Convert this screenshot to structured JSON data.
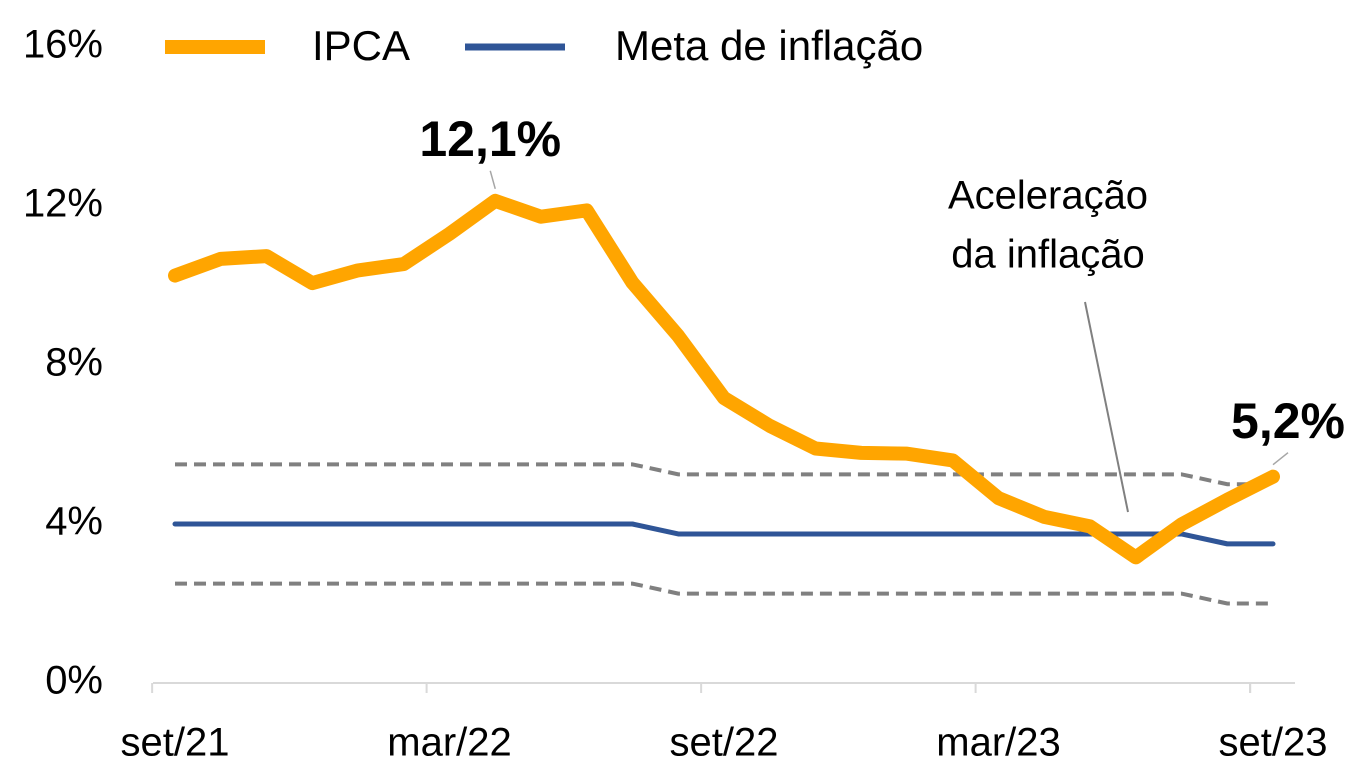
{
  "chart_data": {
    "type": "line",
    "categories": [
      "set/21",
      null,
      null,
      null,
      null,
      null,
      "mar/22",
      null,
      null,
      null,
      null,
      null,
      "set/22",
      null,
      null,
      null,
      null,
      null,
      "mar/23",
      null,
      null,
      null,
      null,
      null,
      "set/23"
    ],
    "series": [
      {
        "name": "IPCA",
        "color": "#FFA500",
        "values": [
          10.25,
          10.67,
          10.74,
          10.06,
          10.38,
          10.54,
          11.3,
          12.13,
          11.73,
          11.89,
          10.07,
          8.73,
          7.17,
          6.47,
          5.9,
          5.79,
          5.77,
          5.6,
          4.65,
          4.18,
          3.94,
          3.16,
          3.99,
          4.61,
          5.19
        ],
        "value_labels": [
          null,
          null,
          null,
          null,
          null,
          null,
          null,
          "12,1%",
          null,
          null,
          null,
          null,
          null,
          null,
          null,
          null,
          null,
          null,
          null,
          null,
          null,
          null,
          null,
          null,
          "5,2%"
        ]
      },
      {
        "name": "Meta de inflação",
        "color": "#2F5597",
        "values": [
          4,
          4,
          4,
          4,
          4,
          4,
          4,
          4,
          4,
          4,
          4,
          3.75,
          3.75,
          3.75,
          3.75,
          3.75,
          3.75,
          3.75,
          3.75,
          3.75,
          3.75,
          3.75,
          3.75,
          3.5,
          3.5
        ]
      }
    ],
    "bands": [
      {
        "color": "#808080",
        "values": [
          5.5,
          5.5,
          5.5,
          5.5,
          5.5,
          5.5,
          5.5,
          5.5,
          5.5,
          5.5,
          5.5,
          5.25,
          5.25,
          5.25,
          5.25,
          5.25,
          5.25,
          5.25,
          5.25,
          5.25,
          5.25,
          5.25,
          5.25,
          5,
          5
        ]
      },
      {
        "color": "#808080",
        "values": [
          2.5,
          2.5,
          2.5,
          2.5,
          2.5,
          2.5,
          2.5,
          2.5,
          2.5,
          2.5,
          2.5,
          2.25,
          2.25,
          2.25,
          2.25,
          2.25,
          2.25,
          2.25,
          2.25,
          2.25,
          2.25,
          2.25,
          2.25,
          2,
          2
        ]
      }
    ],
    "annotations": [
      {
        "lines": [
          "Aceleração",
          "da inflação"
        ]
      }
    ],
    "ylim": [
      0,
      16
    ],
    "yticks": [
      {
        "value": 0,
        "label": "0%"
      },
      {
        "value": 4,
        "label": "4%"
      },
      {
        "value": 8,
        "label": "8%"
      },
      {
        "value": 12,
        "label": "12%"
      },
      {
        "value": 16,
        "label": "16%"
      }
    ],
    "legend": "top"
  }
}
